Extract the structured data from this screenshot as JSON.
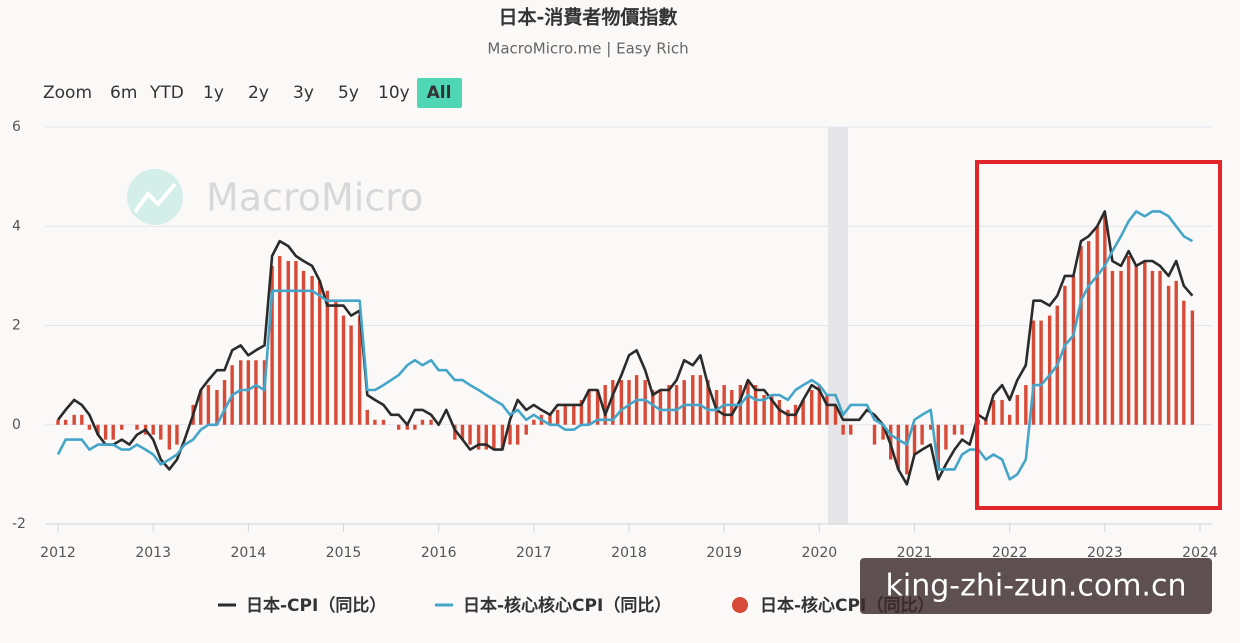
{
  "chart_data": {
    "type": "combo",
    "title": "日本-消費者物價指數",
    "subtitle": "MacroMicro.me | Easy Rich",
    "range_selector": {
      "label": "Zoom",
      "buttons": [
        "6m",
        "YTD",
        "1y",
        "2y",
        "3y",
        "5y",
        "10y",
        "All"
      ],
      "selected_index": 7
    },
    "watermark": "MacroMicro",
    "overlay_text": "king-zhi-zun.com.cn",
    "xlim": [
      2012,
      2024
    ],
    "xticks": [
      2012,
      2013,
      2014,
      2015,
      2016,
      2017,
      2018,
      2019,
      2020,
      2021,
      2022,
      2023,
      2024
    ],
    "ylim": [
      -2,
      6
    ],
    "yticks": [
      -2,
      0,
      2,
      4,
      6
    ],
    "grid": true,
    "x": [
      2012,
      2012.08,
      2012.17,
      2012.25,
      2012.33,
      2012.42,
      2012.5,
      2012.58,
      2012.67,
      2012.75,
      2012.83,
      2012.92,
      2013,
      2013.08,
      2013.17,
      2013.25,
      2013.33,
      2013.42,
      2013.5,
      2013.58,
      2013.67,
      2013.75,
      2013.83,
      2013.92,
      2014,
      2014.08,
      2014.17,
      2014.25,
      2014.33,
      2014.42,
      2014.5,
      2014.58,
      2014.67,
      2014.75,
      2014.83,
      2014.92,
      2015,
      2015.08,
      2015.17,
      2015.25,
      2015.33,
      2015.42,
      2015.5,
      2015.58,
      2015.67,
      2015.75,
      2015.83,
      2015.92,
      2016,
      2016.08,
      2016.17,
      2016.25,
      2016.33,
      2016.42,
      2016.5,
      2016.58,
      2016.67,
      2016.75,
      2016.83,
      2016.92,
      2017,
      2017.08,
      2017.17,
      2017.25,
      2017.33,
      2017.42,
      2017.5,
      2017.58,
      2017.67,
      2017.75,
      2017.83,
      2017.92,
      2018,
      2018.08,
      2018.17,
      2018.25,
      2018.33,
      2018.42,
      2018.5,
      2018.58,
      2018.67,
      2018.75,
      2018.83,
      2018.92,
      2019,
      2019.08,
      2019.17,
      2019.25,
      2019.33,
      2019.42,
      2019.5,
      2019.58,
      2019.67,
      2019.75,
      2019.83,
      2019.92,
      2020,
      2020.08,
      2020.17,
      2020.25,
      2020.33,
      2020.42,
      2020.5,
      2020.58,
      2020.67,
      2020.75,
      2020.83,
      2020.92,
      2021,
      2021.08,
      2021.17,
      2021.25,
      2021.33,
      2021.42,
      2021.5,
      2021.58,
      2021.67,
      2021.75,
      2021.83,
      2021.92,
      2022,
      2022.08,
      2022.17,
      2022.25,
      2022.33,
      2022.42,
      2022.5,
      2022.58,
      2022.67,
      2022.75,
      2022.83,
      2022.92,
      2023,
      2023.08,
      2023.17,
      2023.25,
      2023.33,
      2023.42,
      2023.5,
      2023.58,
      2023.67,
      2023.75,
      2023.83,
      2023.92
    ],
    "series": [
      {
        "name": "日本-CPI（同比）",
        "type": "line",
        "color": "#2b2b2b",
        "values": [
          0.1,
          0.3,
          0.5,
          0.4,
          0.2,
          -0.2,
          -0.4,
          -0.4,
          -0.3,
          -0.4,
          -0.2,
          -0.1,
          -0.3,
          -0.7,
          -0.9,
          -0.7,
          -0.3,
          0.2,
          0.7,
          0.9,
          1.1,
          1.1,
          1.5,
          1.6,
          1.4,
          1.5,
          1.6,
          3.4,
          3.7,
          3.6,
          3.4,
          3.3,
          3.2,
          2.9,
          2.4,
          2.4,
          2.4,
          2.2,
          2.3,
          0.6,
          0.5,
          0.4,
          0.2,
          0.2,
          0.0,
          0.3,
          0.3,
          0.2,
          0.0,
          0.3,
          -0.1,
          -0.3,
          -0.5,
          -0.4,
          -0.4,
          -0.5,
          -0.5,
          0.1,
          0.5,
          0.3,
          0.4,
          0.3,
          0.2,
          0.4,
          0.4,
          0.4,
          0.4,
          0.7,
          0.7,
          0.2,
          0.6,
          1.0,
          1.4,
          1.5,
          1.1,
          0.6,
          0.7,
          0.7,
          0.9,
          1.3,
          1.2,
          1.4,
          0.8,
          0.3,
          0.2,
          0.2,
          0.5,
          0.9,
          0.7,
          0.7,
          0.5,
          0.3,
          0.2,
          0.2,
          0.5,
          0.8,
          0.7,
          0.4,
          0.4,
          0.1,
          0.1,
          0.1,
          0.3,
          0.2,
          0.0,
          -0.4,
          -0.9,
          -1.2,
          -0.6,
          -0.5,
          -0.4,
          -1.1,
          -0.8,
          -0.5,
          -0.3,
          -0.4,
          0.2,
          0.1,
          0.6,
          0.8,
          0.5,
          0.9,
          1.2,
          2.5,
          2.5,
          2.4,
          2.6,
          3.0,
          3.0,
          3.7,
          3.8,
          4.0,
          4.3,
          3.3,
          3.2,
          3.5,
          3.2,
          3.3,
          3.3,
          3.2,
          3.0,
          3.3,
          2.8,
          2.6
        ]
      },
      {
        "name": "日本-核心核心CPI（同比）",
        "type": "line",
        "color": "#45a5c9",
        "values": [
          -0.6,
          -0.3,
          -0.3,
          -0.3,
          -0.5,
          -0.4,
          -0.4,
          -0.4,
          -0.5,
          -0.5,
          -0.4,
          -0.5,
          -0.6,
          -0.8,
          -0.7,
          -0.6,
          -0.4,
          -0.3,
          -0.1,
          0.0,
          0.0,
          0.3,
          0.6,
          0.7,
          0.7,
          0.8,
          0.7,
          2.7,
          2.7,
          2.7,
          2.7,
          2.7,
          2.7,
          2.6,
          2.5,
          2.5,
          2.5,
          2.5,
          2.5,
          0.7,
          0.7,
          0.8,
          0.9,
          1.0,
          1.2,
          1.3,
          1.2,
          1.3,
          1.1,
          1.1,
          0.9,
          0.9,
          0.8,
          0.7,
          0.6,
          0.5,
          0.4,
          0.2,
          0.3,
          0.1,
          0.2,
          0.1,
          0.0,
          0.0,
          -0.1,
          -0.1,
          0.0,
          0.0,
          0.1,
          0.1,
          0.1,
          0.3,
          0.4,
          0.5,
          0.5,
          0.4,
          0.3,
          0.3,
          0.3,
          0.4,
          0.4,
          0.4,
          0.3,
          0.3,
          0.4,
          0.4,
          0.4,
          0.6,
          0.5,
          0.5,
          0.6,
          0.6,
          0.5,
          0.7,
          0.8,
          0.9,
          0.8,
          0.6,
          0.6,
          0.2,
          0.4,
          0.4,
          0.4,
          0.1,
          0.0,
          -0.2,
          -0.3,
          -0.4,
          0.1,
          0.2,
          0.3,
          -0.9,
          -0.9,
          -0.9,
          -0.6,
          -0.5,
          -0.5,
          -0.7,
          -0.6,
          -0.7,
          -1.1,
          -1.0,
          -0.7,
          0.8,
          0.8,
          1.0,
          1.2,
          1.6,
          1.8,
          2.5,
          2.8,
          3.0,
          3.2,
          3.5,
          3.8,
          4.1,
          4.3,
          4.2,
          4.3,
          4.3,
          4.2,
          4.0,
          3.8,
          3.7
        ]
      },
      {
        "name": "日本-核心CPI（同比）",
        "type": "bar",
        "color": "#d84a38",
        "values": [
          0.1,
          0.1,
          0.2,
          0.2,
          -0.1,
          -0.2,
          -0.3,
          -0.3,
          -0.1,
          0.0,
          -0.1,
          -0.2,
          -0.2,
          -0.3,
          -0.5,
          -0.4,
          0.0,
          0.4,
          0.7,
          0.8,
          0.7,
          0.9,
          1.2,
          1.3,
          1.3,
          1.3,
          1.3,
          3.2,
          3.4,
          3.3,
          3.3,
          3.1,
          3.0,
          2.9,
          2.7,
          2.5,
          2.2,
          2.0,
          2.2,
          0.3,
          0.1,
          0.1,
          0.0,
          -0.1,
          -0.1,
          -0.1,
          0.1,
          0.1,
          0.0,
          0.0,
          -0.3,
          -0.3,
          -0.4,
          -0.5,
          -0.5,
          -0.5,
          -0.5,
          -0.4,
          -0.4,
          -0.2,
          0.1,
          0.2,
          0.2,
          0.3,
          0.4,
          0.4,
          0.5,
          0.7,
          0.7,
          0.8,
          0.9,
          0.9,
          0.9,
          1.0,
          0.9,
          0.7,
          0.7,
          0.8,
          0.8,
          0.9,
          1.0,
          1.0,
          0.9,
          0.7,
          0.8,
          0.7,
          0.8,
          0.9,
          0.8,
          0.6,
          0.6,
          0.5,
          0.3,
          0.4,
          0.5,
          0.7,
          0.8,
          0.6,
          0.4,
          -0.2,
          -0.2,
          0.0,
          0.0,
          -0.4,
          -0.3,
          -0.7,
          -0.9,
          -1.0,
          -0.6,
          -0.4,
          -0.1,
          -0.9,
          -0.5,
          -0.2,
          -0.2,
          0.0,
          0.1,
          0.1,
          0.5,
          0.5,
          0.2,
          0.6,
          0.8,
          2.1,
          2.1,
          2.2,
          2.4,
          2.8,
          3.0,
          3.6,
          3.7,
          4.0,
          4.2,
          3.1,
          3.1,
          3.4,
          3.2,
          3.3,
          3.1,
          3.1,
          2.8,
          2.9,
          2.5,
          2.3
        ]
      }
    ]
  }
}
